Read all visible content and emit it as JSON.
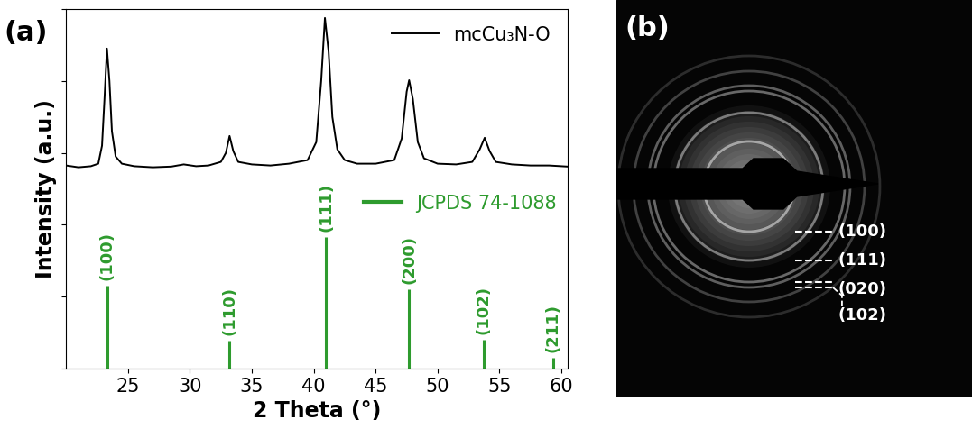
{
  "chart_data": {
    "type": "line",
    "panel_label": "(a)",
    "x_label": "2 Theta (°)",
    "y_label": "Intensity (a.u.)",
    "xlim": [
      20,
      60.5
    ],
    "xticks": [
      25,
      30,
      35,
      40,
      45,
      50,
      55,
      60
    ],
    "ylim": [
      0,
      100
    ],
    "yticks": [
      0,
      20,
      40,
      60,
      80,
      100
    ],
    "tick_labels": "x",
    "legend": "upper right",
    "series": [
      {
        "name": "mcCu₃N-O",
        "type": "line",
        "color": "#000000",
        "x": [
          20.0,
          21,
          22,
          22.6,
          22.9,
          23.1,
          23.3,
          23.5,
          23.7,
          24,
          24.5,
          25.5,
          27,
          28.5,
          29.5,
          30.5,
          31.5,
          32.5,
          32.9,
          33.2,
          33.5,
          33.9,
          35,
          36.5,
          38,
          39.5,
          40.2,
          40.6,
          40.9,
          41.2,
          41.5,
          41.9,
          42.5,
          43.5,
          45,
          46.5,
          47.1,
          47.5,
          47.7,
          48,
          48.4,
          48.9,
          50,
          51.5,
          52.8,
          53.4,
          53.8,
          54.2,
          54.7,
          56,
          57.5,
          59,
          60.5
        ],
        "values": [
          56.5,
          56,
          56.3,
          57,
          62,
          75,
          89,
          80,
          66,
          59,
          57,
          56.3,
          56,
          56.2,
          56.8,
          56.3,
          56.5,
          57.5,
          60,
          64.7,
          60.5,
          57.5,
          56.8,
          56.5,
          57,
          58,
          63,
          80,
          97.5,
          88,
          70,
          61,
          58,
          57,
          57,
          58,
          64,
          77,
          80.2,
          75,
          63,
          58.5,
          57,
          56.8,
          57.5,
          61,
          64.2,
          60.5,
          57.5,
          56.8,
          56.5,
          56.5,
          56.2
        ]
      },
      {
        "name": "JCPDS 74-1088",
        "type": "stem",
        "color": "#2e9b2e",
        "x": [
          23.3,
          33.2,
          41.0,
          47.7,
          53.7,
          59.3
        ],
        "values": [
          23,
          7.7,
          36.5,
          22,
          8,
          3
        ],
        "peak_labels": [
          "(100)",
          "(110)",
          "(111)",
          "(200)",
          "(102)",
          "(211)"
        ]
      }
    ]
  },
  "panel_b": {
    "panel_label": "(b)",
    "ring_labels": [
      "(100)",
      "(111)",
      "(020)",
      "(102)"
    ]
  }
}
